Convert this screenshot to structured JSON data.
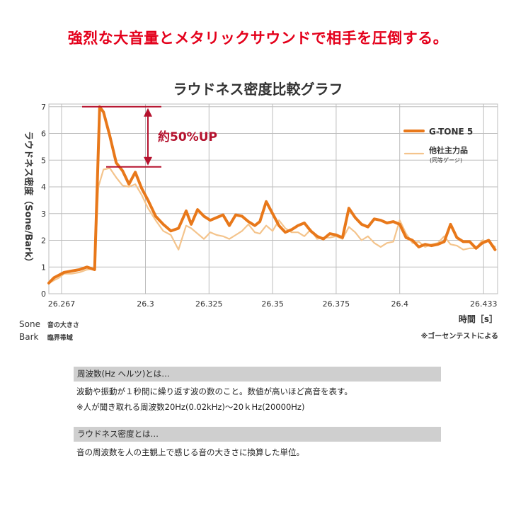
{
  "headline": "強烈な大音量とメタリックサウンドで相手を圧倒する。",
  "colors": {
    "headline": "#e4001b",
    "gtone": "#e8781a",
    "other": "#f4c48c",
    "annotation": "#b5122e",
    "grid": "#bdbdbd"
  },
  "chart_data": {
    "type": "line",
    "title": "ラウドネス密度比較グラフ",
    "ylabel": "ラウドネス密度（Sone/Bark）",
    "xlabel": "時間［s］",
    "xlim": [
      26.262,
      26.4385
    ],
    "ylim": [
      0,
      7.1
    ],
    "x_ticks": [
      "26.267",
      "26.3",
      "26.325",
      "26.35",
      "26.375",
      "26.4",
      "26.433"
    ],
    "x_tick_values": [
      26.267,
      26.3,
      26.325,
      26.35,
      26.375,
      26.4,
      26.433
    ],
    "y_ticks": [
      "0",
      "1",
      "2",
      "3",
      "4",
      "5",
      "6",
      "7"
    ],
    "grid": true,
    "legend_position": "top-right",
    "annotation": "約50%UP",
    "series": [
      {
        "name": "G-TONE 5",
        "note": "",
        "color": "#e8781a",
        "x": [
          26.262,
          26.264,
          26.266,
          26.268,
          26.271,
          26.274,
          26.277,
          26.28,
          26.282,
          26.2835,
          26.286,
          26.2885,
          26.291,
          26.2935,
          26.296,
          26.2985,
          26.301,
          26.304,
          26.307,
          26.31,
          26.313,
          26.316,
          26.318,
          26.3205,
          26.323,
          26.3255,
          26.328,
          26.3305,
          26.333,
          26.3355,
          26.338,
          26.3405,
          26.343,
          26.345,
          26.3475,
          26.35,
          26.3525,
          26.355,
          26.3575,
          26.36,
          26.3625,
          26.365,
          26.3675,
          26.37,
          26.3725,
          26.375,
          26.3775,
          26.38,
          26.3825,
          26.385,
          26.3875,
          26.39,
          26.3925,
          26.395,
          26.3975,
          26.4,
          26.4025,
          26.405,
          26.4075,
          26.41,
          26.4125,
          26.415,
          26.4175,
          26.42,
          26.4225,
          26.425,
          26.4275,
          26.43,
          26.4325,
          26.435,
          26.4375
        ],
        "values": [
          0.4,
          0.6,
          0.7,
          0.8,
          0.85,
          0.9,
          1.0,
          0.9,
          7.0,
          6.8,
          5.9,
          4.9,
          4.6,
          4.1,
          4.55,
          3.95,
          3.5,
          2.9,
          2.6,
          2.35,
          2.45,
          3.1,
          2.6,
          3.15,
          2.9,
          2.75,
          2.85,
          2.95,
          2.55,
          2.95,
          2.9,
          2.7,
          2.55,
          2.7,
          3.45,
          3.0,
          2.55,
          2.3,
          2.4,
          2.55,
          2.65,
          2.35,
          2.15,
          2.05,
          2.25,
          2.2,
          2.1,
          3.2,
          2.85,
          2.6,
          2.5,
          2.8,
          2.75,
          2.65,
          2.7,
          2.6,
          2.1,
          2.0,
          1.75,
          1.85,
          1.8,
          1.85,
          1.95,
          2.6,
          2.1,
          1.95,
          1.95,
          1.7,
          1.9,
          2.0,
          1.65
        ]
      },
      {
        "name": "他社主力品",
        "note": "(同等ゲージ)",
        "color": "#f4c48c",
        "x": [
          26.262,
          26.264,
          26.266,
          26.268,
          26.271,
          26.274,
          26.277,
          26.28,
          26.2815,
          26.2835,
          26.286,
          26.2885,
          26.291,
          26.2935,
          26.296,
          26.2985,
          26.301,
          26.304,
          26.307,
          26.31,
          26.313,
          26.316,
          26.318,
          26.3205,
          26.323,
          26.3255,
          26.328,
          26.3305,
          26.333,
          26.3355,
          26.338,
          26.3405,
          26.343,
          26.345,
          26.3475,
          26.35,
          26.3525,
          26.355,
          26.3575,
          26.36,
          26.3625,
          26.365,
          26.3675,
          26.37,
          26.3725,
          26.375,
          26.3775,
          26.38,
          26.3825,
          26.385,
          26.3875,
          26.39,
          26.3925,
          26.395,
          26.3975,
          26.4,
          26.4025,
          26.405,
          26.4075,
          26.41,
          26.4125,
          26.415,
          26.4175,
          26.42,
          26.4225,
          26.425,
          26.4275,
          26.43,
          26.4325,
          26.435,
          26.4375
        ],
        "values": [
          0.4,
          0.5,
          0.6,
          0.75,
          0.75,
          0.8,
          0.9,
          0.95,
          4.0,
          4.65,
          4.7,
          4.35,
          4.05,
          4.0,
          4.1,
          3.7,
          3.2,
          2.75,
          2.35,
          2.2,
          1.65,
          2.55,
          2.45,
          2.25,
          2.05,
          2.3,
          2.2,
          2.15,
          2.05,
          2.2,
          2.35,
          2.6,
          2.3,
          2.25,
          2.55,
          2.35,
          2.75,
          2.45,
          2.3,
          2.3,
          2.15,
          2.4,
          2.05,
          2.1,
          2.1,
          2.15,
          2.05,
          2.5,
          2.3,
          2.0,
          2.15,
          1.9,
          1.75,
          1.9,
          1.95,
          2.75,
          2.25,
          1.9,
          1.95,
          1.75,
          1.85,
          1.9,
          2.15,
          1.85,
          1.8,
          1.65,
          1.7,
          1.7,
          2.0,
          1.95,
          1.75
        ]
      }
    ]
  },
  "unit_notes": [
    {
      "key": "Sone",
      "desc": "音の大きさ"
    },
    {
      "key": "Bark",
      "desc": "臨界帯域"
    }
  ],
  "source_note": "※ゴーセンテストによる",
  "sections": [
    {
      "header": "周波数(Hz ヘルツ)とは…",
      "lines": [
        "波動や振動が１秒間に繰り返す波の数のこと。数値が高いほど高音を表す。",
        "※人が聞き取れる周波数20Hz(0.02kHz)〜20ｋHz(20000Hz)"
      ]
    },
    {
      "header": "ラウドネス密度とは…",
      "lines": [
        "音の周波数を人の主観上で感じる音の大きさに換算した単位。"
      ]
    }
  ]
}
